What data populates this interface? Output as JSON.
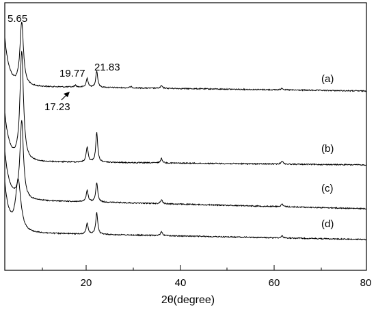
{
  "chart_data": {
    "type": "line",
    "xlabel": "2θ(degree)",
    "ylabel": "",
    "xlim": [
      2,
      80
    ],
    "x_ticks": [
      "20",
      "40",
      "60",
      "80"
    ],
    "grid": false,
    "y_ticks_visible": false,
    "series": [
      {
        "name": "(a)",
        "peaks": [
          {
            "x": 5.65,
            "rel_height": 1.0
          },
          {
            "x": 17.23,
            "rel_height": 0.03
          },
          {
            "x": 19.77,
            "rel_height": 0.14
          },
          {
            "x": 21.83,
            "rel_height": 0.26
          },
          {
            "x": 29.2,
            "rel_height": 0.02
          },
          {
            "x": 35.8,
            "rel_height": 0.04
          },
          {
            "x": 61.8,
            "rel_height": 0.03
          }
        ]
      },
      {
        "name": "(b)",
        "peaks": [
          {
            "x": 5.65,
            "rel_height": 1.0
          },
          {
            "x": 19.77,
            "rel_height": 0.14
          },
          {
            "x": 21.83,
            "rel_height": 0.27
          },
          {
            "x": 35.8,
            "rel_height": 0.04
          },
          {
            "x": 61.8,
            "rel_height": 0.03
          }
        ]
      },
      {
        "name": "(c)",
        "peaks": [
          {
            "x": 5.65,
            "rel_height": 1.0
          },
          {
            "x": 19.77,
            "rel_height": 0.14
          },
          {
            "x": 21.83,
            "rel_height": 0.25
          },
          {
            "x": 35.8,
            "rel_height": 0.05
          },
          {
            "x": 61.8,
            "rel_height": 0.03
          }
        ]
      },
      {
        "name": "(d)",
        "peaks": [
          {
            "x": 4.9,
            "rel_height": 1.0
          },
          {
            "x": 19.77,
            "rel_height": 0.21
          },
          {
            "x": 21.83,
            "rel_height": 0.42
          },
          {
            "x": 35.8,
            "rel_height": 0.08
          },
          {
            "x": 61.8,
            "rel_height": 0.04
          }
        ]
      }
    ],
    "annotations": [
      "5.65",
      "19.77",
      "21.83",
      "17.23"
    ]
  }
}
